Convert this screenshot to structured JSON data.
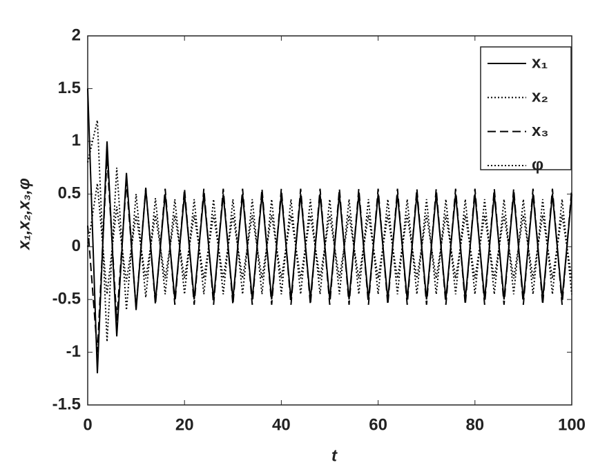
{
  "chart_data": {
    "type": "line",
    "xlabel": "t",
    "ylabel": "x₁,x₂,x₃,φ",
    "x": [
      0,
      2,
      4,
      6,
      8,
      10,
      12,
      14,
      16,
      18,
      20,
      22,
      24,
      26,
      28,
      30,
      32,
      34,
      36,
      38,
      40,
      42,
      44,
      46,
      48,
      50,
      52,
      54,
      56,
      58,
      60,
      62,
      64,
      66,
      68,
      70,
      72,
      74,
      76,
      78,
      80,
      82,
      84,
      86,
      88,
      90,
      92,
      94,
      96,
      98,
      100
    ],
    "series": [
      {
        "name": "x₁",
        "color": "#000000",
        "linestyle": "solid",
        "values": [
          1.5,
          -1.2,
          1.0,
          -0.85,
          0.7,
          -0.6,
          0.55,
          -0.52,
          0.5,
          -0.5,
          0.5,
          -0.5,
          0.5,
          -0.5,
          0.5,
          -0.5,
          0.5,
          -0.5,
          0.5,
          -0.5,
          0.5,
          -0.5,
          0.5,
          -0.5,
          0.5,
          -0.5,
          0.5,
          -0.5,
          0.5,
          -0.5,
          0.5,
          -0.5,
          0.5,
          -0.5,
          0.5,
          -0.5,
          0.5,
          -0.5,
          0.5,
          -0.5,
          0.5,
          -0.5,
          0.5,
          -0.5,
          0.5,
          -0.5,
          0.5,
          -0.5,
          0.5,
          -0.5,
          0.5
        ]
      },
      {
        "name": "x₂",
        "color": "#000000",
        "linestyle": "dotted",
        "values": [
          0.8,
          1.2,
          -0.9,
          0.75,
          -0.6,
          0.5,
          -0.48,
          0.46,
          -0.45,
          0.45,
          -0.45,
          0.45,
          -0.45,
          0.45,
          -0.45,
          0.45,
          -0.45,
          0.45,
          -0.45,
          0.45,
          -0.45,
          0.45,
          -0.45,
          0.45,
          -0.45,
          0.45,
          -0.45,
          0.45,
          -0.45,
          0.45,
          -0.45,
          0.45,
          -0.45,
          0.45,
          -0.45,
          0.45,
          -0.45,
          0.45,
          -0.45,
          0.45,
          -0.45,
          0.45,
          -0.45,
          0.45,
          -0.45,
          0.45,
          -0.45,
          0.45,
          -0.45,
          0.45,
          -0.45
        ]
      },
      {
        "name": "x₃",
        "color": "#000000",
        "linestyle": "dashed",
        "values": [
          0.2,
          -1.0,
          0.85,
          -0.7,
          0.62,
          -0.58,
          0.56,
          -0.55,
          0.55,
          -0.55,
          0.55,
          -0.55,
          0.55,
          -0.55,
          0.55,
          -0.55,
          0.55,
          -0.55,
          0.55,
          -0.55,
          0.55,
          -0.55,
          0.55,
          -0.55,
          0.55,
          -0.55,
          0.55,
          -0.55,
          0.55,
          -0.55,
          0.55,
          -0.55,
          0.55,
          -0.55,
          0.55,
          -0.55,
          0.55,
          -0.55,
          0.55,
          -0.55,
          0.55,
          -0.55,
          0.55,
          -0.55,
          0.55,
          -0.55,
          0.55,
          -0.55,
          0.55,
          -0.55,
          0.55
        ]
      },
      {
        "name": "φ",
        "color": "#000000",
        "linestyle": "dotted",
        "values": [
          0,
          0.6,
          -0.45,
          0.38,
          -0.33,
          0.3,
          -0.3,
          0.3,
          -0.3,
          0.3,
          -0.3,
          0.3,
          -0.3,
          0.3,
          -0.3,
          0.3,
          -0.3,
          0.3,
          -0.3,
          0.3,
          -0.3,
          0.3,
          -0.3,
          0.3,
          -0.3,
          0.3,
          -0.3,
          0.3,
          -0.3,
          0.3,
          -0.3,
          0.3,
          -0.3,
          0.3,
          -0.3,
          0.3,
          -0.3,
          0.3,
          -0.3,
          0.3,
          -0.3,
          0.3,
          -0.3,
          0.3,
          -0.3,
          0.3,
          -0.3,
          0.3,
          -0.3,
          0.3,
          -0.3
        ]
      }
    ],
    "xlim": [
      0,
      100
    ],
    "xticks": [
      0,
      20,
      40,
      60,
      80,
      100
    ],
    "ylim": [
      -1.5,
      2
    ],
    "yticks": [
      -1.5,
      -1,
      -0.5,
      0,
      0.5,
      1,
      1.5,
      2
    ],
    "legend": "top-right"
  }
}
